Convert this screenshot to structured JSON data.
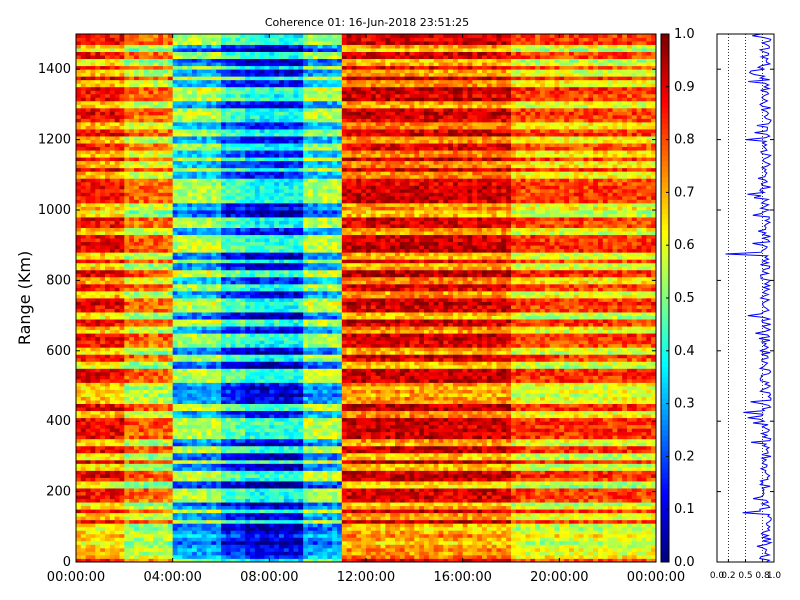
{
  "chart_data": [
    {
      "type": "heatmap",
      "title": "Coherence 01: 16-Jun-2018 23:51:25",
      "xlabel": "",
      "ylabel": "Range (Km)",
      "x_tick_labels": [
        "00:00:00",
        "04:00:00",
        "08:00:00",
        "12:00:00",
        "16:00:00",
        "20:00:00",
        "00:00:00"
      ],
      "x_range_hours": [
        0,
        24
      ],
      "ylim": [
        0,
        1500
      ],
      "y_ticks": [
        0,
        200,
        400,
        600,
        800,
        1000,
        1200,
        1400
      ],
      "colormap": "jet",
      "color_range": [
        0.0,
        1.0
      ],
      "colorbar_ticks": [
        "0.0",
        "0.1",
        "0.2",
        "0.3",
        "0.4",
        "0.5",
        "0.6",
        "0.7",
        "0.8",
        "0.9",
        "1.0"
      ],
      "time_bins": 120,
      "range_bins": 150,
      "mean_coherence_by_time_segment": [
        {
          "from_hour": 0.0,
          "to_hour": 2.0,
          "value": 0.88
        },
        {
          "from_hour": 2.0,
          "to_hour": 4.0,
          "value": 0.78
        },
        {
          "from_hour": 4.0,
          "to_hour": 6.0,
          "value": 0.55
        },
        {
          "from_hour": 6.0,
          "to_hour": 7.0,
          "value": 0.45
        },
        {
          "from_hour": 7.0,
          "to_hour": 9.5,
          "value": 0.4
        },
        {
          "from_hour": 9.5,
          "to_hour": 11.0,
          "value": 0.55
        },
        {
          "from_hour": 11.0,
          "to_hour": 18.0,
          "value": 0.92
        },
        {
          "from_hour": 18.0,
          "to_hour": 24.0,
          "value": 0.82
        }
      ],
      "low_coherence_range_bands_km": [
        20,
        40,
        60,
        80,
        100,
        130,
        160,
        220,
        270,
        300,
        340,
        420,
        460,
        480,
        500,
        560,
        600,
        660,
        700,
        760,
        800,
        840,
        870,
        940,
        990,
        1010,
        1100,
        1130,
        1160,
        1200,
        1240,
        1300,
        1360,
        1390,
        1420,
        1460
      ]
    },
    {
      "type": "line",
      "title": "",
      "xlabel": "",
      "ylabel": "",
      "x_tick_labels": [
        "0.0",
        "0.2",
        "0.5",
        "0.8",
        "1.0"
      ],
      "xlim": [
        0,
        1
      ],
      "ylim": [
        0,
        1500
      ],
      "y_ticks": [
        0,
        200,
        400,
        600,
        800,
        1000,
        1200,
        1400
      ],
      "dotted_reference_lines_x": [
        0.2,
        0.5,
        0.8
      ],
      "line_color": "#0000ff",
      "typical_value": 0.85,
      "notable_dips": [
        {
          "range_km": 875,
          "value": 0.15
        },
        {
          "range_km": 1035,
          "value": 0.65
        },
        {
          "range_km": 1090,
          "value": 0.72
        },
        {
          "range_km": 1240,
          "value": 0.7
        },
        {
          "range_km": 140,
          "value": 0.45
        },
        {
          "range_km": 600,
          "value": 0.75
        }
      ]
    }
  ]
}
